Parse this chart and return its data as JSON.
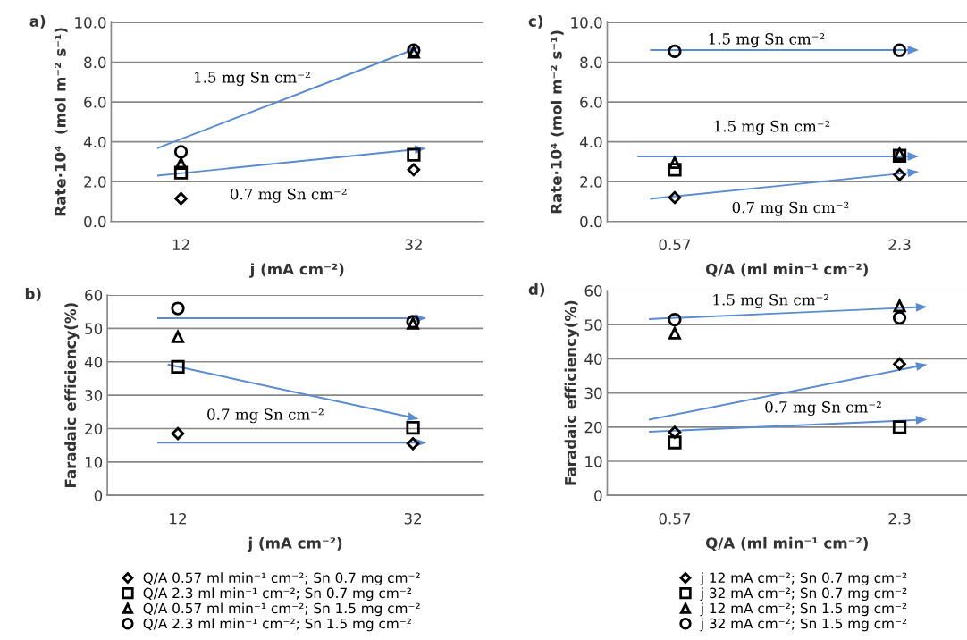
{
  "chart_data": [
    {
      "type": "scatter",
      "title": "a)",
      "xlabel": "j (mA cm⁻²)",
      "ylabel": "Rate·10⁴  (mol m⁻² s⁻¹)",
      "categories": [
        "12",
        "32"
      ],
      "ylim": [
        0,
        10
      ],
      "yticks": [
        {
          "value": 0,
          "label": "0.0"
        },
        {
          "value": 2,
          "label": "2.0"
        },
        {
          "value": 4,
          "label": "4.0"
        },
        {
          "value": 6,
          "label": "6.0"
        },
        {
          "value": 8,
          "label": "8.0"
        },
        {
          "value": 10,
          "label": "10.0"
        }
      ],
      "grid": "y",
      "annotations": [
        "1.5 mg Sn cm⁻²",
        "0.7 mg Sn cm⁻²"
      ],
      "series": [
        {
          "marker": "diamond",
          "color": "#000000",
          "values": [
            1.15,
            2.6
          ]
        },
        {
          "marker": "square",
          "color": "#000000",
          "values": [
            2.45,
            3.35
          ]
        },
        {
          "marker": "triangle",
          "color": "#000000",
          "values": [
            2.9,
            8.5
          ]
        },
        {
          "marker": "circle",
          "color": "#000000",
          "values": [
            3.5,
            8.6
          ]
        }
      ]
    },
    {
      "type": "scatter",
      "title": "b)",
      "xlabel": "j (mA cm⁻²)",
      "ylabel": "Faradaic efficiency(%)",
      "categories": [
        "12",
        "32"
      ],
      "ylim": [
        0,
        60
      ],
      "yticks": [
        0,
        10,
        20,
        30,
        40,
        50,
        60
      ],
      "grid": "y",
      "legend": "bottom",
      "annotations": [
        "0.7 mg Sn cm⁻²"
      ],
      "series": [
        {
          "name": "Q/A 0.57 ml min⁻¹ cm⁻²; Sn 0.7 mg cm⁻²",
          "marker": "diamond",
          "color": "#000000",
          "values": [
            18.5,
            15.5
          ]
        },
        {
          "name": "Q/A 2.3 ml min⁻¹ cm⁻²; Sn 0.7 mg cm⁻²",
          "marker": "square",
          "color": "#000000",
          "values": [
            38.5,
            20.2
          ]
        },
        {
          "name": "Q/A 0.57 ml min⁻¹ cm⁻²; Sn 1.5 mg cm⁻²",
          "marker": "triangle",
          "color": "#000000",
          "values": [
            47.5,
            51.5
          ]
        },
        {
          "name": "Q/A 2.3 ml min⁻¹ cm⁻²; Sn 1.5 mg cm⁻²",
          "marker": "circle",
          "color": "#000000",
          "values": [
            56,
            52
          ]
        }
      ]
    },
    {
      "type": "scatter",
      "title": "c)",
      "xlabel": "Q/A (ml min⁻¹ cm⁻²)",
      "ylabel": "Rate·10⁴ (mol m⁻² s⁻¹)",
      "categories": [
        "0.57",
        "2.3"
      ],
      "ylim": [
        0,
        10
      ],
      "yticks": [
        {
          "value": 0,
          "label": "0.0"
        },
        {
          "value": 2,
          "label": "2.0"
        },
        {
          "value": 4,
          "label": "4.0"
        },
        {
          "value": 6,
          "label": "6.0"
        },
        {
          "value": 8,
          "label": "8.0"
        },
        {
          "value": 10,
          "label": "10.0"
        }
      ],
      "grid": "y",
      "annotations": [
        "1.5 mg Sn cm⁻²",
        "1.5 mg Sn cm⁻²",
        "0.7 mg Sn cm⁻²"
      ],
      "series": [
        {
          "marker": "diamond",
          "color": "#000000",
          "values": [
            1.2,
            2.35
          ]
        },
        {
          "marker": "square",
          "color": "#000000",
          "values": [
            2.6,
            3.3
          ]
        },
        {
          "marker": "triangle",
          "color": "#000000",
          "values": [
            2.95,
            3.4
          ]
        },
        {
          "marker": "circle",
          "color": "#000000",
          "values": [
            8.55,
            8.6
          ]
        }
      ]
    },
    {
      "type": "scatter",
      "title": "d)",
      "xlabel": "Q/A (ml min⁻¹ cm⁻²)",
      "ylabel": "Faradaic efficiency(%)",
      "categories": [
        "0.57",
        "2.3"
      ],
      "ylim": [
        0,
        60
      ],
      "yticks": [
        0,
        10,
        20,
        30,
        40,
        50,
        60
      ],
      "grid": "y",
      "legend": "bottom",
      "annotations": [
        "1.5 mg Sn cm⁻²",
        "0.7 mg Sn cm⁻²"
      ],
      "series": [
        {
          "name": "j 12 mA cm⁻²; Sn 0.7 mg cm⁻²",
          "marker": "diamond",
          "color": "#000000",
          "values": [
            18.5,
            38.5
          ]
        },
        {
          "name": "j 32 mA cm⁻²; Sn 0.7 mg cm⁻²",
          "marker": "square",
          "color": "#000000",
          "values": [
            15.5,
            20
          ]
        },
        {
          "name": "j 12 mA cm⁻²; Sn 1.5 mg cm⁻²",
          "marker": "triangle",
          "color": "#000000",
          "values": [
            47.5,
            55.5
          ]
        },
        {
          "name": "j 32 mA cm⁻²; Sn 1.5 mg cm⁻²",
          "marker": "circle",
          "color": "#000000",
          "values": [
            51.5,
            52
          ]
        }
      ]
    }
  ]
}
